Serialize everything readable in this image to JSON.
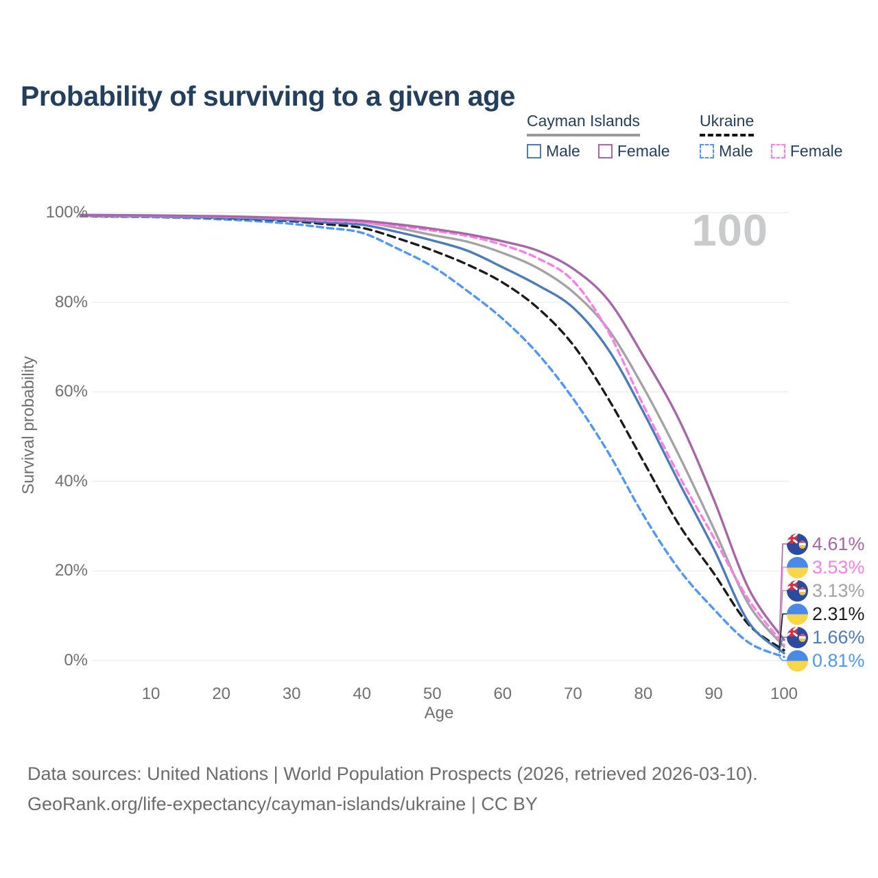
{
  "title": "Probability of surviving to a given age",
  "watermark_age": "100",
  "legend": {
    "groups": [
      {
        "label": "Cayman Islands",
        "line_style": "solid",
        "underline_color": "#9a9a9a",
        "items": [
          {
            "label": "Male",
            "color": "#4a7cbb"
          },
          {
            "label": "Female",
            "color": "#a766a8"
          }
        ]
      },
      {
        "label": "Ukraine",
        "line_style": "dashed",
        "underline_color": "#141414",
        "items": [
          {
            "label": "Male",
            "color": "#4e97f8"
          },
          {
            "label": "Female",
            "color": "#fb7de9"
          }
        ]
      }
    ]
  },
  "axes": {
    "y_label": "Survival probability",
    "x_label": "Age",
    "y_ticks": [
      "100%",
      "80%",
      "60%",
      "40%",
      "20%",
      "0%"
    ],
    "x_ticks": [
      "10",
      "20",
      "30",
      "40",
      "50",
      "60",
      "70",
      "80",
      "90",
      "100"
    ]
  },
  "end_labels": [
    {
      "value": "4.61%",
      "country": "cayman-islands",
      "series_key": "cayman_female",
      "color": "#a864a8"
    },
    {
      "value": "3.53%",
      "country": "ukraine",
      "series_key": "ukraine_female",
      "color": "#fb7de9"
    },
    {
      "value": "3.13%",
      "country": "cayman-islands",
      "series_key": "cayman_total",
      "color": "#a3a3a3"
    },
    {
      "value": "2.31%",
      "country": "ukraine",
      "series_key": "ukraine_total",
      "color": "#1b1b1b"
    },
    {
      "value": "1.66%",
      "country": "cayman-islands",
      "series_key": "cayman_male",
      "color": "#4a7cbb"
    },
    {
      "value": "0.81%",
      "country": "ukraine",
      "series_key": "ukraine_male",
      "color": "#4e97f8"
    }
  ],
  "footer": {
    "line1": "Data sources: United Nations | World Population Prospects (2026, retrieved 2026-03-10).",
    "line2": "GeoRank.org/life-expectancy/cayman-islands/ukraine | CC BY"
  },
  "chart_data": {
    "type": "line",
    "title": "Probability of surviving to a given age",
    "xlabel": "Age",
    "ylabel": "Survival probability",
    "xlim": [
      0,
      100
    ],
    "ylim": [
      0,
      100
    ],
    "grid": true,
    "legend_position": "top-right",
    "x": [
      0,
      5,
      10,
      15,
      20,
      25,
      30,
      35,
      40,
      45,
      50,
      55,
      60,
      65,
      70,
      75,
      80,
      85,
      90,
      95,
      100
    ],
    "series": [
      {
        "key": "cayman_female",
        "name": "Cayman Islands — Female",
        "country": "Cayman Islands",
        "sex": "Female",
        "style": "solid",
        "color": "#a766a8",
        "values": [
          99.5,
          99.45,
          99.4,
          99.3,
          99.2,
          99.0,
          98.8,
          98.5,
          98.2,
          97.4,
          96.4,
          95.2,
          93.6,
          91.5,
          87.5,
          80.5,
          68.0,
          54.0,
          36.0,
          16.0,
          4.61
        ]
      },
      {
        "key": "ukraine_female",
        "name": "Ukraine — Female",
        "country": "Ukraine",
        "sex": "Female",
        "style": "dashed",
        "color": "#fb7de9",
        "values": [
          99.4,
          99.35,
          99.3,
          99.2,
          99.1,
          98.9,
          98.6,
          98.2,
          97.8,
          97.0,
          96.0,
          94.8,
          92.8,
          89.8,
          84.8,
          73.5,
          57.0,
          41.5,
          27.5,
          13.5,
          3.53
        ]
      },
      {
        "key": "cayman_total",
        "name": "Cayman Islands — Total",
        "country": "Cayman Islands",
        "sex": "Both",
        "style": "solid",
        "color": "#a3a3a3",
        "values": [
          99.4,
          99.35,
          99.3,
          99.2,
          99.1,
          98.9,
          98.7,
          98.3,
          97.9,
          96.6,
          95.0,
          93.5,
          91.0,
          87.6,
          82.3,
          74.0,
          61.0,
          46.0,
          29.5,
          12.5,
          3.13
        ]
      },
      {
        "key": "ukraine_total",
        "name": "Ukraine — Total",
        "country": "Ukraine",
        "sex": "Both",
        "style": "dashed",
        "color": "#1b1b1b",
        "values": [
          99.3,
          99.25,
          99.2,
          99.0,
          98.8,
          98.5,
          98.1,
          97.4,
          96.6,
          94.3,
          91.6,
          88.4,
          84.4,
          78.7,
          70.5,
          58.5,
          44.5,
          30.5,
          19.5,
          8.0,
          2.31
        ]
      },
      {
        "key": "cayman_male",
        "name": "Cayman Islands — Male",
        "country": "Cayman Islands",
        "sex": "Male",
        "style": "solid",
        "color": "#4a7cbb",
        "values": [
          99.4,
          99.3,
          99.2,
          99.0,
          98.9,
          98.6,
          98.3,
          97.8,
          97.3,
          95.7,
          93.8,
          91.5,
          87.8,
          83.8,
          78.8,
          69.5,
          55.5,
          40.0,
          25.0,
          8.5,
          1.66
        ]
      },
      {
        "key": "ukraine_male",
        "name": "Ukraine — Male",
        "country": "Ukraine",
        "sex": "Male",
        "style": "dashed",
        "color": "#4e97f8",
        "values": [
          99.2,
          99.1,
          99.0,
          98.8,
          98.5,
          98.1,
          97.5,
          96.6,
          95.5,
          92.0,
          88.0,
          82.5,
          76.3,
          68.5,
          58.5,
          46.5,
          32.5,
          20.5,
          11.5,
          4.0,
          0.81
        ]
      }
    ]
  }
}
